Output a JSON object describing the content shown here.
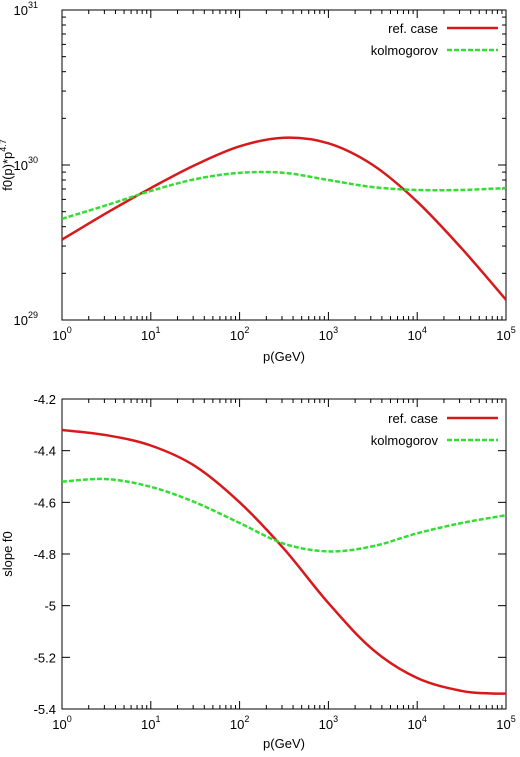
{
  "chart_data": [
    {
      "type": "line",
      "xlabel": "p(GeV)",
      "ylabel": "f0(p)*p^4.7",
      "xscale": "log",
      "yscale": "log",
      "xlim": [
        1,
        100000
      ],
      "ylim": [
        1e+29,
        1e+31
      ],
      "xticks": [
        {
          "value": 1,
          "base": "10",
          "exp": "0"
        },
        {
          "value": 10,
          "base": "10",
          "exp": "1"
        },
        {
          "value": 100,
          "base": "10",
          "exp": "2"
        },
        {
          "value": 1000,
          "base": "10",
          "exp": "3"
        },
        {
          "value": 10000,
          "base": "10",
          "exp": "4"
        },
        {
          "value": 100000,
          "base": "10",
          "exp": "5"
        }
      ],
      "yticks": [
        {
          "value": 1e+29,
          "base": "10",
          "exp": "29"
        },
        {
          "value": 1e+30,
          "base": "10",
          "exp": "30"
        },
        {
          "value": 1e+31,
          "base": "10",
          "exp": "31"
        }
      ],
      "legend": "top-right",
      "series": [
        {
          "name": "ref. case",
          "color": "#d7191c",
          "dash": "solid",
          "x": [
            1,
            3.16,
            10,
            31.6,
            100,
            316,
            1000,
            3162,
            10000,
            31623,
            100000
          ],
          "y": [
            3.3e+29,
            4.9e+29,
            7.1e+29,
            1e+30,
            1.32e+30,
            1.5e+30,
            1.38e+30,
            1e+30,
            5.8e+29,
            2.9e+29,
            1.35e+29
          ]
        },
        {
          "name": "kolmogorov",
          "color": "#33dd33",
          "dash": "dashed",
          "x": [
            1,
            3.16,
            10,
            31.6,
            100,
            316,
            1000,
            3162,
            10000,
            31623,
            100000
          ],
          "y": [
            4.5e+29,
            5.5e+29,
            6.8e+29,
            8.1e+29,
            8.9e+29,
            8.9e+29,
            8e+29,
            7.2e+29,
            6.9e+29,
            6.9e+29,
            7.1e+29
          ]
        }
      ]
    },
    {
      "type": "line",
      "xlabel": "p(GeV)",
      "ylabel": "slope f0",
      "xscale": "log",
      "yscale": "linear",
      "xlim": [
        1,
        100000
      ],
      "ylim": [
        -5.4,
        -4.2
      ],
      "xticks": [
        {
          "value": 1,
          "base": "10",
          "exp": "0"
        },
        {
          "value": 10,
          "base": "10",
          "exp": "1"
        },
        {
          "value": 100,
          "base": "10",
          "exp": "2"
        },
        {
          "value": 1000,
          "base": "10",
          "exp": "3"
        },
        {
          "value": 10000,
          "base": "10",
          "exp": "4"
        },
        {
          "value": 100000,
          "base": "10",
          "exp": "5"
        }
      ],
      "yticks": [
        {
          "value": -4.2,
          "label": "-4.2"
        },
        {
          "value": -4.4,
          "label": "-4.4"
        },
        {
          "value": -4.6,
          "label": "-4.6"
        },
        {
          "value": -4.8,
          "label": "-4.8"
        },
        {
          "value": -5.0,
          "label": "-5"
        },
        {
          "value": -5.2,
          "label": "-5.2"
        },
        {
          "value": -5.4,
          "label": "-5.4"
        }
      ],
      "legend": "top-right",
      "series": [
        {
          "name": "ref. case",
          "color": "#d7191c",
          "dash": "solid",
          "x": [
            1,
            3.16,
            10,
            31.6,
            100,
            316,
            1000,
            3162,
            10000,
            31623,
            70000,
            100000
          ],
          "y": [
            -4.32,
            -4.34,
            -4.38,
            -4.46,
            -4.6,
            -4.78,
            -4.99,
            -5.17,
            -5.28,
            -5.33,
            -5.34,
            -5.34
          ]
        },
        {
          "name": "kolmogorov",
          "color": "#33dd33",
          "dash": "dashed",
          "x": [
            1,
            3.16,
            10,
            31.6,
            100,
            316,
            1000,
            3162,
            10000,
            31623,
            100000
          ],
          "y": [
            -4.52,
            -4.51,
            -4.54,
            -4.6,
            -4.68,
            -4.76,
            -4.79,
            -4.77,
            -4.72,
            -4.68,
            -4.65
          ]
        }
      ]
    }
  ]
}
